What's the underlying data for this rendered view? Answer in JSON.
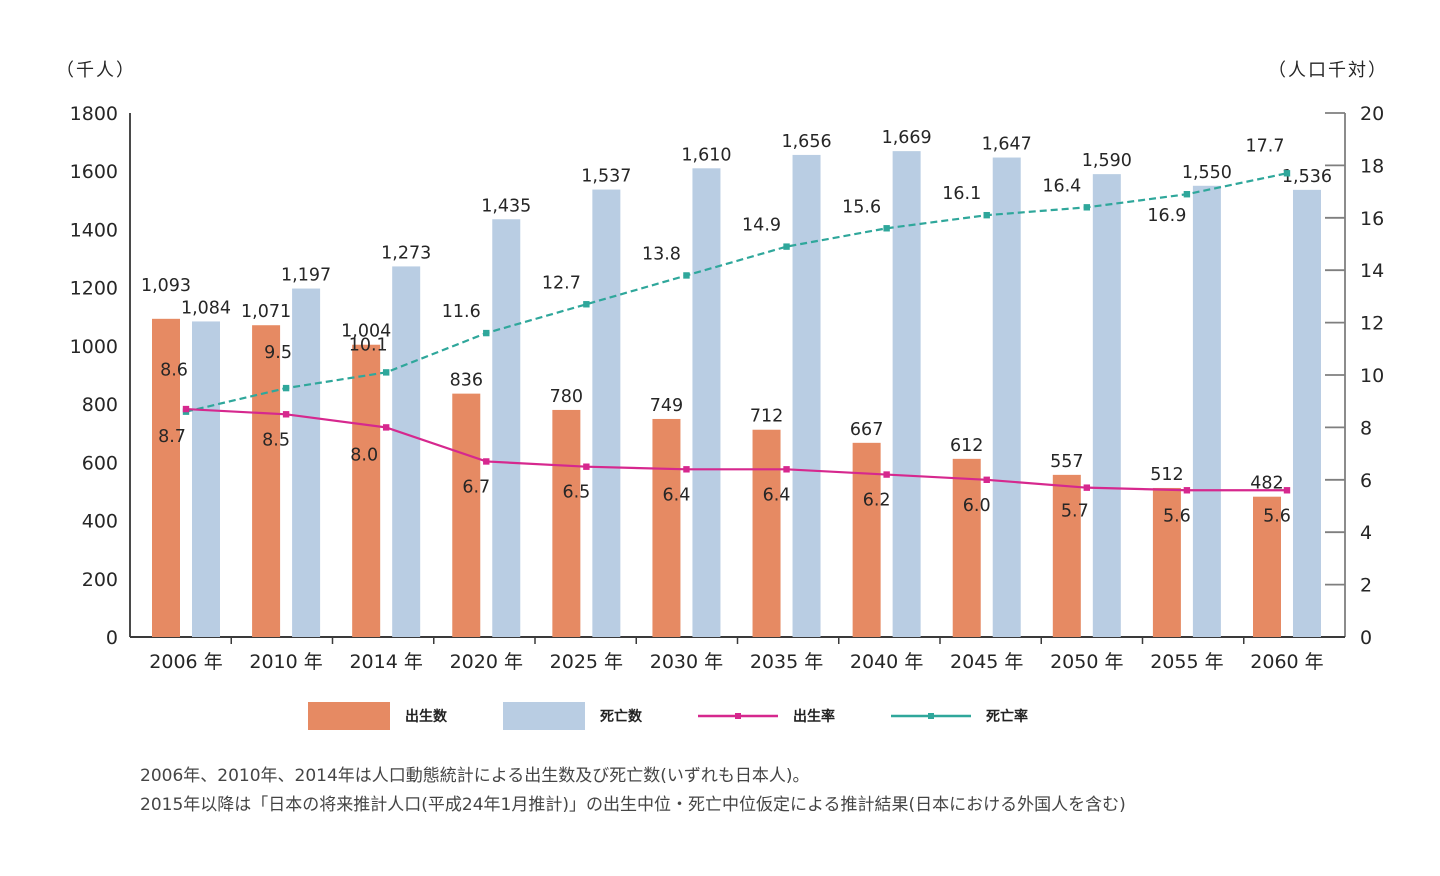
{
  "chart_data": {
    "type": "bar+line",
    "title": "",
    "categories": [
      "2006 年",
      "2010 年",
      "2014 年",
      "2020 年",
      "2025 年",
      "2030 年",
      "2035 年",
      "2040 年",
      "2045 年",
      "2050 年",
      "2055 年",
      "2060 年"
    ],
    "series": [
      {
        "key": "births",
        "name": "出生数",
        "type": "bar",
        "axis": "left",
        "color": "#E68A63",
        "values": [
          1093,
          1071,
          1004,
          836,
          780,
          749,
          712,
          667,
          612,
          557,
          512,
          482
        ]
      },
      {
        "key": "deaths",
        "name": "死亡数",
        "type": "bar",
        "axis": "left",
        "color": "#B9CDE3",
        "values": [
          1084,
          1197,
          1273,
          1435,
          1537,
          1610,
          1656,
          1669,
          1647,
          1590,
          1550,
          1536
        ]
      },
      {
        "key": "birth_rate",
        "name": "出生率",
        "type": "line",
        "axis": "right",
        "color": "#D6288E",
        "values": [
          8.7,
          8.5,
          8.0,
          6.7,
          6.5,
          6.4,
          6.4,
          6.2,
          6.0,
          5.7,
          5.6,
          5.6
        ]
      },
      {
        "key": "death_rate",
        "name": "死亡率",
        "type": "line",
        "axis": "right",
        "color": "#2FA79B",
        "values": [
          8.6,
          9.5,
          10.1,
          11.6,
          12.7,
          13.8,
          14.9,
          15.6,
          16.1,
          16.4,
          16.9,
          17.7
        ]
      }
    ],
    "left_axis": {
      "title": "（千人）",
      "min": 0,
      "max": 1800,
      "step": 200
    },
    "right_axis": {
      "title": "（人口千対）",
      "min": 0,
      "max": 20,
      "step": 2
    },
    "grid": "off",
    "legend_position": "bottom",
    "footnotes": [
      "2006年、2010年、2014年は人口動態統計による出生数及び死亡数(いずれも日本人)。",
      "2015年以降は「日本の将来推計人口(平成24年1月推計)」の出生中位・死亡中位仮定による推計結果(日本における外国人を含む)"
    ]
  }
}
